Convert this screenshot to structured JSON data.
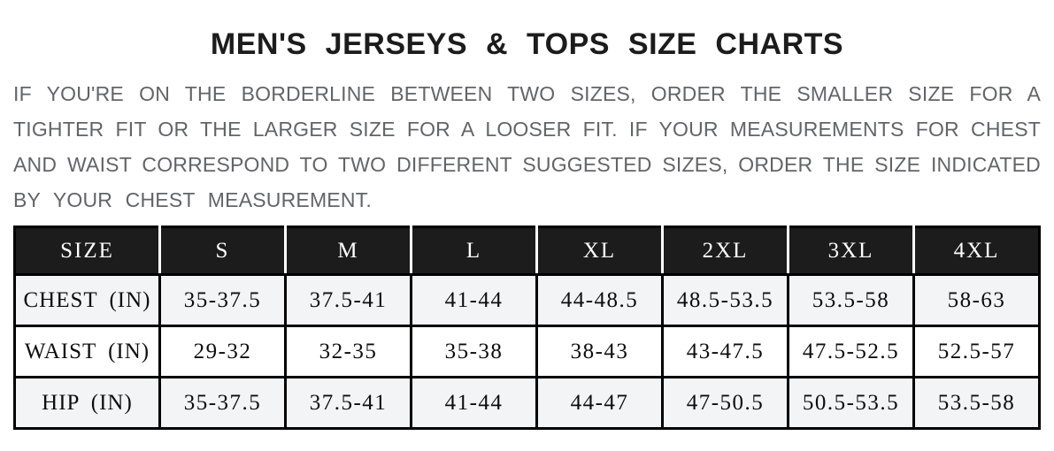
{
  "page": {
    "title": "MEN'S JERSEYS & TOPS SIZE CHARTS",
    "intro_lines": [
      "IF YOU'RE ON THE BORDERLINE BETWEEN TWO SIZES, ORDER THE SMALLER SIZE FOR A",
      "TIGHTER FIT OR THE LARGER SIZE FOR A LOOSER FIT. IF YOUR MEASUREMENTS FOR CHEST",
      "AND WAIST CORRESPOND TO TWO DIFFERENT SUGGESTED SIZES, ORDER THE SIZE INDICATED",
      "BY YOUR CHEST MEASUREMENT."
    ],
    "intro_full_text": "IF YOU'RE ON THE BORDERLINE BETWEEN TWO SIZES, ORDER THE SMALLER SIZE FOR A TIGHTER FIT OR THE LARGER SIZE FOR A LOOSER FIT. IF YOUR MEASUREMENTS FOR CHEST AND WAIST CORRESPOND TO TWO DIFFERENT SUGGESTED SIZES, ORDER THE SIZE INDICATED BY YOUR CHEST MEASUREMENT."
  },
  "chart_data": {
    "type": "table",
    "title": "MEN'S JERSEYS & TOPS SIZE CHARTS",
    "columns": [
      "SIZE",
      "S",
      "M",
      "L",
      "XL",
      "2XL",
      "3XL",
      "4XL"
    ],
    "rows": [
      {
        "label": "CHEST (IN)",
        "values": [
          "35-37.5",
          "37.5-41",
          "41-44",
          "44-48.5",
          "48.5-53.5",
          "53.5-58",
          "58-63"
        ]
      },
      {
        "label": "WAIST (IN)",
        "values": [
          "29-32",
          "32-35",
          "35-38",
          "38-43",
          "43-47.5",
          "47.5-52.5",
          "52.5-57"
        ]
      },
      {
        "label": "HIP (IN)",
        "values": [
          "35-37.5",
          "37.5-41",
          "41-44",
          "44-47",
          "47-50.5",
          "50.5-53.5",
          "53.5-58"
        ]
      }
    ]
  },
  "colors": {
    "title_text": "#1c1c1c",
    "intro_text": "#636467",
    "header_bg": "#1c1c1c",
    "header_text": "#ffffff",
    "header_divider": "#ffffff",
    "table_border": "#000000",
    "alt_row_bg": "#f3f4f6",
    "cell_text": "#0d0d0d",
    "page_bg": "#ffffff"
  }
}
